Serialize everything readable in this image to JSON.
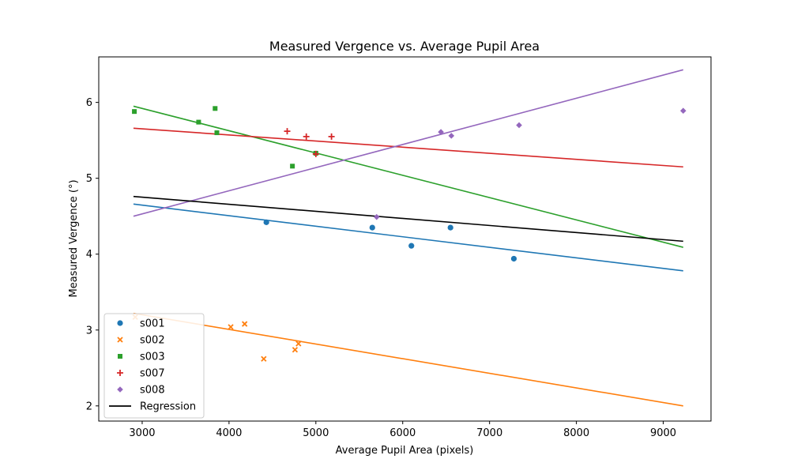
{
  "chart_data": {
    "type": "scatter",
    "title": "Measured Vergence vs. Average Pupil Area",
    "xlabel": "Average Pupil Area (pixels)",
    "ylabel": "Measured Vergence (°)",
    "xlim": [
      2500,
      9550
    ],
    "ylim": [
      1.8,
      6.6
    ],
    "xticks": [
      3000,
      4000,
      5000,
      6000,
      7000,
      8000,
      9000
    ],
    "yticks": [
      2,
      3,
      4,
      5,
      6
    ],
    "grid": false,
    "legend_position": "lower-left",
    "series": [
      {
        "name": "s001",
        "color": "#1f77b4",
        "marker": "circle",
        "points": [
          [
            4430,
            4.42
          ],
          [
            5650,
            4.35
          ],
          [
            6100,
            4.11
          ],
          [
            6550,
            4.35
          ],
          [
            7280,
            3.94
          ]
        ],
        "fit": [
          [
            2900,
            4.66
          ],
          [
            9230,
            3.78
          ]
        ]
      },
      {
        "name": "s002",
        "color": "#ff7f0e",
        "marker": "x",
        "points": [
          [
            2920,
            3.17
          ],
          [
            4020,
            3.04
          ],
          [
            4180,
            3.08
          ],
          [
            4400,
            2.62
          ],
          [
            4760,
            2.74
          ],
          [
            4800,
            2.82
          ]
        ],
        "fit": [
          [
            2900,
            3.22
          ],
          [
            9230,
            2.0
          ]
        ]
      },
      {
        "name": "s003",
        "color": "#2ca02c",
        "marker": "square",
        "points": [
          [
            2910,
            5.88
          ],
          [
            3650,
            5.74
          ],
          [
            3840,
            5.92
          ],
          [
            3860,
            5.6
          ],
          [
            4730,
            5.16
          ],
          [
            5000,
            5.33
          ]
        ],
        "fit": [
          [
            2900,
            5.95
          ],
          [
            9230,
            4.09
          ]
        ]
      },
      {
        "name": "s007",
        "color": "#d62728",
        "marker": "plus",
        "points": [
          [
            4670,
            5.62
          ],
          [
            4890,
            5.55
          ],
          [
            5000,
            5.32
          ],
          [
            5180,
            5.55
          ]
        ],
        "fit": [
          [
            2900,
            5.66
          ],
          [
            9230,
            5.15
          ]
        ]
      },
      {
        "name": "s008",
        "color": "#9467bd",
        "marker": "diamond",
        "points": [
          [
            5700,
            4.49
          ],
          [
            6440,
            5.61
          ],
          [
            6560,
            5.56
          ],
          [
            7340,
            5.7
          ],
          [
            9230,
            5.89
          ]
        ],
        "fit": [
          [
            2900,
            4.5
          ],
          [
            9230,
            6.43
          ]
        ]
      }
    ],
    "regression": {
      "name": "Regression",
      "color": "#000000",
      "line": [
        [
          2900,
          4.76
        ],
        [
          9230,
          4.17
        ]
      ]
    }
  }
}
